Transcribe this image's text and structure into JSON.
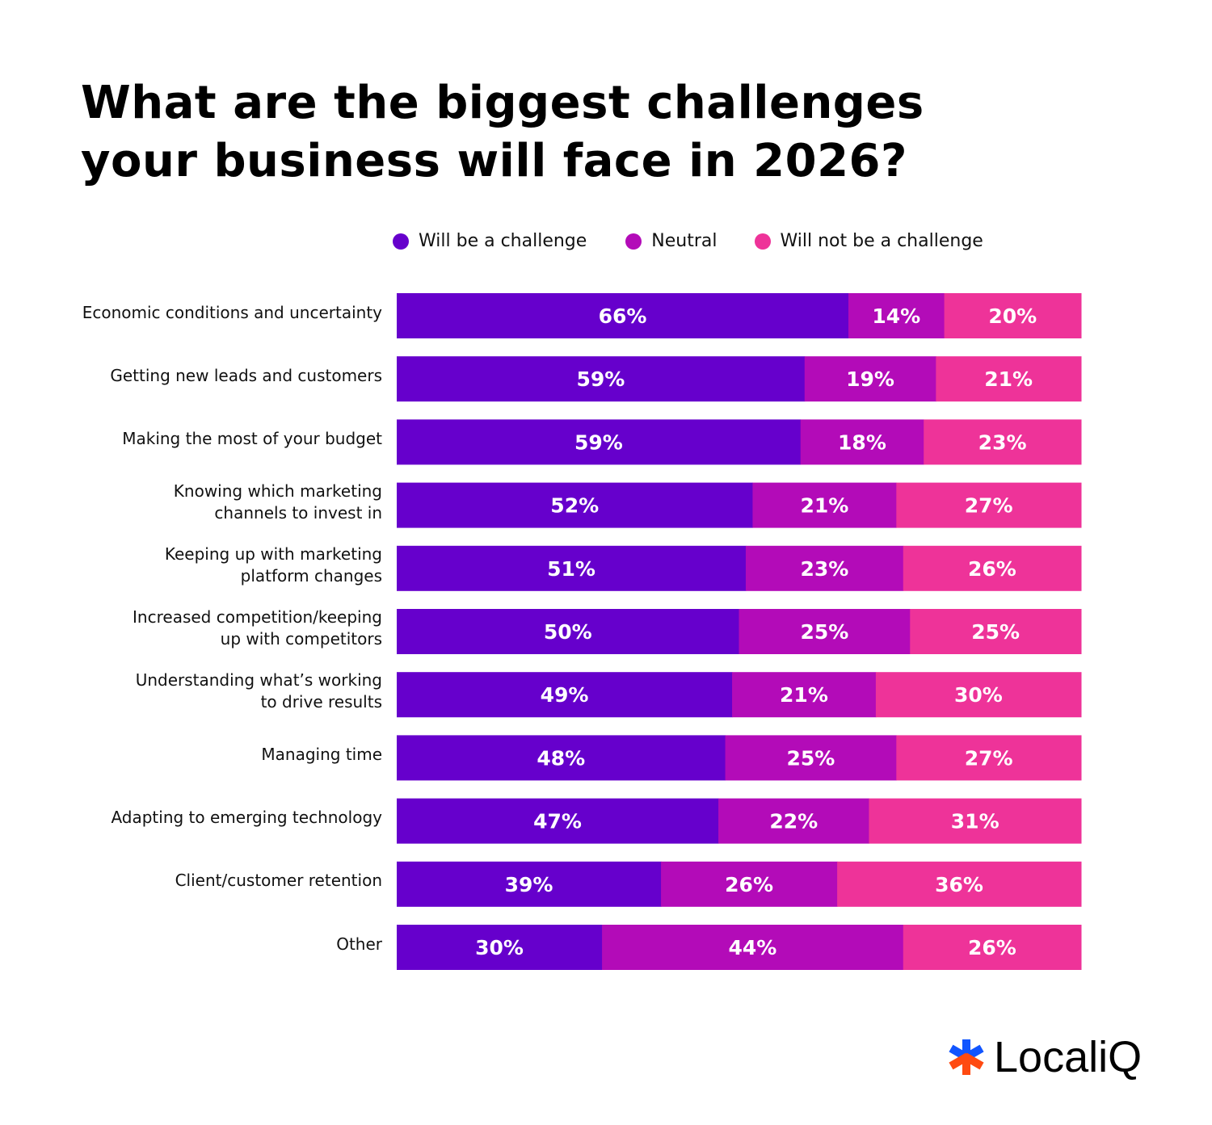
{
  "chart_data": {
    "type": "bar",
    "orientation": "horizontal",
    "stacked": true,
    "normalized": true,
    "title": "What are the biggest challenges\nyour business will face in 2026?",
    "legend_position": "top",
    "categories": [
      "Economic conditions and uncertainty",
      "Getting new leads and customers",
      "Making the most of your budget",
      "Knowing which marketing\nchannels to invest in",
      "Keeping up with marketing\nplatform changes",
      "Increased competition/keeping\nup with competitors",
      "Understanding what’s working\nto drive results",
      "Managing time",
      "Adapting to emerging technology",
      "Client/customer retention",
      "Other"
    ],
    "series": [
      {
        "name": "Will be a challenge",
        "color": "#6600CC",
        "values": [
          66,
          59,
          59,
          52,
          51,
          50,
          49,
          48,
          47,
          39,
          30
        ]
      },
      {
        "name": "Neutral",
        "color": "#B30BB8",
        "values": [
          14,
          19,
          18,
          21,
          23,
          25,
          21,
          25,
          22,
          26,
          44
        ]
      },
      {
        "name": "Will not be a challenge",
        "color": "#EE3399",
        "values": [
          20,
          21,
          23,
          27,
          26,
          25,
          30,
          27,
          31,
          36,
          26
        ]
      }
    ],
    "value_suffix": "%",
    "grid": false
  },
  "logo": {
    "text": "LocaliQ",
    "colors": {
      "top": "#1155FF",
      "bottom": "#FF4A11"
    }
  }
}
